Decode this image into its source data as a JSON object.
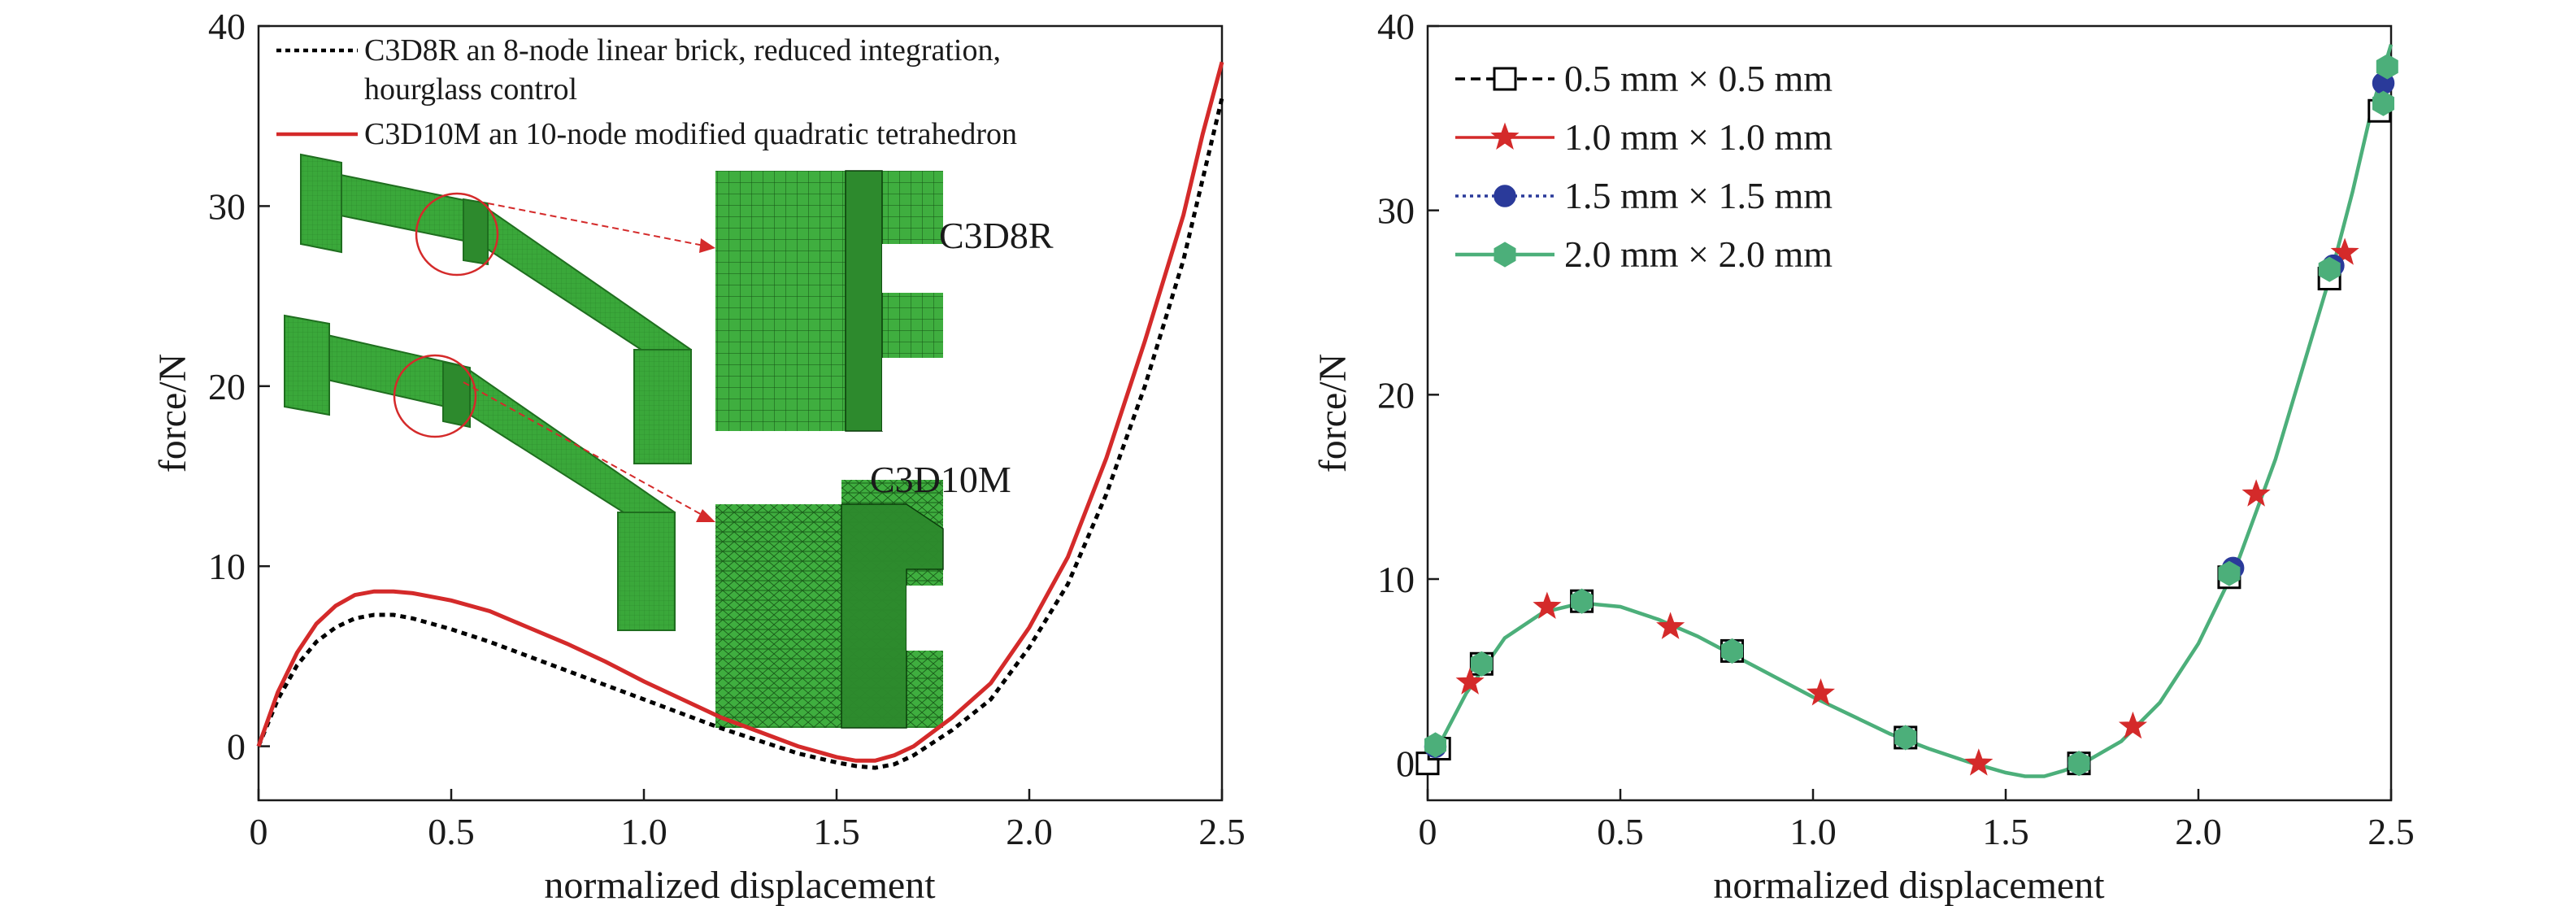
{
  "chart_data": [
    {
      "type": "line",
      "xlabel": "normalized displacement",
      "ylabel": "force/N",
      "xlim": [
        0,
        2.5
      ],
      "ylim": [
        -3,
        40
      ],
      "xticks": [
        "0",
        "0.5",
        "1.0",
        "1.5",
        "2.0",
        "2.5"
      ],
      "yticks": [
        "0",
        "10",
        "20",
        "30",
        "40"
      ],
      "grid": false,
      "legend": "top-left",
      "series": [
        {
          "name": "C3D8R an 8-node linear brick, reduced integration, hourglass control",
          "legend_lines": [
            "C3D8R an 8-node linear brick, reduced integration,",
            "hourglass control"
          ],
          "color": "#000000",
          "style": "dotted",
          "x": [
            0,
            0.05,
            0.1,
            0.15,
            0.2,
            0.25,
            0.3,
            0.35,
            0.4,
            0.45,
            0.5,
            0.6,
            0.7,
            0.8,
            0.9,
            1.0,
            1.1,
            1.2,
            1.3,
            1.4,
            1.5,
            1.55,
            1.6,
            1.65,
            1.7,
            1.8,
            1.9,
            2.0,
            2.1,
            2.2,
            2.3,
            2.4,
            2.45,
            2.5
          ],
          "values": [
            0,
            2.6,
            4.5,
            5.8,
            6.6,
            7.1,
            7.3,
            7.3,
            7.1,
            6.8,
            6.5,
            5.8,
            5.0,
            4.2,
            3.4,
            2.6,
            1.8,
            1.0,
            0.3,
            -0.4,
            -0.9,
            -1.1,
            -1.2,
            -1.0,
            -0.5,
            0.9,
            2.6,
            5.5,
            9.0,
            14.0,
            20.0,
            27.0,
            31.5,
            36.0
          ]
        },
        {
          "name": "C3D10M an 10-node modified quadratic tetrahedron",
          "legend_lines": [
            "C3D10M an 10-node modified quadratic tetrahedron"
          ],
          "color": "#d42a2a",
          "style": "solid",
          "x": [
            0,
            0.05,
            0.1,
            0.15,
            0.2,
            0.25,
            0.3,
            0.35,
            0.4,
            0.45,
            0.5,
            0.6,
            0.7,
            0.8,
            0.9,
            1.0,
            1.1,
            1.2,
            1.3,
            1.4,
            1.5,
            1.55,
            1.6,
            1.65,
            1.7,
            1.8,
            1.9,
            2.0,
            2.1,
            2.2,
            2.3,
            2.4,
            2.45,
            2.5
          ],
          "values": [
            0,
            3.0,
            5.2,
            6.8,
            7.8,
            8.4,
            8.6,
            8.6,
            8.5,
            8.3,
            8.1,
            7.5,
            6.6,
            5.7,
            4.7,
            3.6,
            2.6,
            1.6,
            0.8,
            0.0,
            -0.6,
            -0.8,
            -0.8,
            -0.5,
            0.0,
            1.6,
            3.5,
            6.6,
            10.5,
            16.0,
            22.5,
            29.5,
            34.0,
            38.0
          ]
        }
      ],
      "insets": {
        "labels": [
          "C3D8R",
          "C3D10M"
        ],
        "colors": {
          "mesh": "#3fae3f",
          "mesh_dark": "#2d8a2d",
          "mesh_line": "#0a3a0a",
          "callout": "#d42a2a"
        }
      }
    },
    {
      "type": "line",
      "xlabel": "normalized displacement",
      "ylabel": "force/N",
      "xlim": [
        0,
        2.5
      ],
      "ylim": [
        -2,
        40
      ],
      "xticks": [
        "0",
        "0.5",
        "1.0",
        "1.5",
        "2.0",
        "2.5"
      ],
      "yticks": [
        "0",
        "10",
        "20",
        "30",
        "40"
      ],
      "grid": false,
      "legend": "top-left",
      "curve": {
        "x": [
          0,
          0.03,
          0.1,
          0.2,
          0.3,
          0.4,
          0.5,
          0.6,
          0.7,
          0.8,
          0.9,
          1.0,
          1.1,
          1.2,
          1.3,
          1.4,
          1.5,
          1.55,
          1.6,
          1.65,
          1.7,
          1.8,
          1.9,
          2.0,
          2.1,
          2.2,
          2.3,
          2.35,
          2.4,
          2.45,
          2.5
        ],
        "values": [
          0,
          1.0,
          3.8,
          6.8,
          8.2,
          8.7,
          8.5,
          7.8,
          6.9,
          5.8,
          4.7,
          3.6,
          2.6,
          1.6,
          0.8,
          0.1,
          -0.5,
          -0.7,
          -0.7,
          -0.4,
          0.0,
          1.2,
          3.3,
          6.5,
          10.8,
          16.5,
          23.5,
          27.0,
          31.0,
          35.5,
          39.0
        ]
      },
      "series": [
        {
          "name": "0.5 mm × 0.5 mm",
          "color": "#000000",
          "marker": "square",
          "style": "dashed",
          "marker_x": [
            0.0,
            0.03,
            0.14,
            0.4,
            0.79,
            1.24,
            1.69,
            2.08,
            2.34,
            2.47
          ],
          "marker_y": [
            0.0,
            0.8,
            5.4,
            8.8,
            6.1,
            1.4,
            0.0,
            10.1,
            26.3,
            35.4
          ]
        },
        {
          "name": "1.0 mm × 1.0 mm",
          "color": "#d42a2a",
          "marker": "star",
          "style": "solid",
          "marker_x": [
            0.11,
            0.31,
            0.63,
            1.02,
            1.43,
            1.83,
            2.15,
            2.38
          ],
          "marker_y": [
            4.4,
            8.5,
            7.4,
            3.8,
            0.0,
            2.0,
            14.6,
            27.7
          ]
        },
        {
          "name": "1.5 mm × 1.5 mm",
          "color": "#2a3a9a",
          "marker": "circle",
          "style": "dotted",
          "marker_x": [
            0.02,
            0.4,
            0.79,
            1.24,
            1.69,
            2.09,
            2.35,
            2.48
          ],
          "marker_y": [
            0.9,
            8.8,
            6.1,
            1.4,
            0.0,
            10.6,
            27.0,
            36.9
          ]
        },
        {
          "name": "2.0 mm × 2.0 mm",
          "color": "#4caf7a",
          "marker": "hexagon",
          "style": "solid",
          "marker_x": [
            0.02,
            0.14,
            0.4,
            0.79,
            1.24,
            1.69,
            2.08,
            2.34,
            2.48,
            2.49
          ],
          "marker_y": [
            1.0,
            5.4,
            8.8,
            6.1,
            1.4,
            0.0,
            10.3,
            26.8,
            35.8,
            37.8
          ]
        }
      ]
    }
  ]
}
